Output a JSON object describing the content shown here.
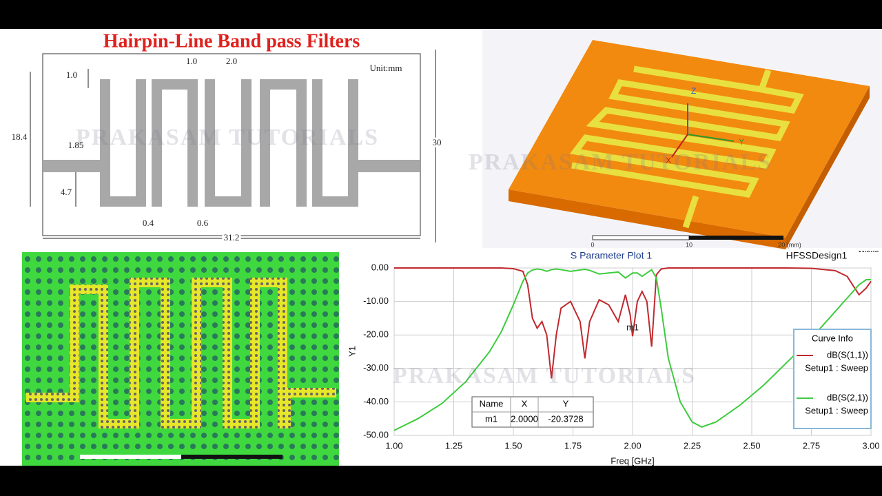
{
  "title": "Hairpin-Line Band pass Filters",
  "watermark": "PRAKASAM TUTORIALS",
  "drawing": {
    "unit": "Unit:mm",
    "dims": {
      "gap_top": "1.0",
      "width_top": "1.0",
      "spacing_top": "2.0",
      "height": "18.4",
      "feed_width": "1.85",
      "feed_offset": "4.7",
      "gap_bottom": "0.4",
      "gap_bottom2": "0.6",
      "length": "31.2",
      "board_height": "30"
    }
  },
  "model_3d": {
    "axes": [
      "Z",
      "Y",
      "X"
    ],
    "scale": [
      "0",
      "10",
      "20 (mm)"
    ],
    "vendor": "ANSYS"
  },
  "chart_data": {
    "type": "line",
    "title": "S Parameter Plot 1",
    "design": "HFSSDesign1",
    "x_label": "Freq [GHz]",
    "y_label": "Y1",
    "xlim": [
      1.0,
      3.0
    ],
    "ylim": [
      -50,
      0
    ],
    "xticks": [
      {
        "value": 1.0,
        "label": "1.00"
      },
      {
        "value": 1.25,
        "label": "1.25"
      },
      {
        "value": 1.5,
        "label": "1.50"
      },
      {
        "value": 1.75,
        "label": "1.75"
      },
      {
        "value": 2.0,
        "label": "2.00"
      },
      {
        "value": 2.25,
        "label": "2.25"
      },
      {
        "value": 2.5,
        "label": "2.50"
      },
      {
        "value": 2.75,
        "label": "2.75"
      },
      {
        "value": 3.0,
        "label": "3.00"
      }
    ],
    "yticks": [
      {
        "value": 0,
        "label": "0.00"
      },
      {
        "value": -10,
        "label": "-10.00"
      },
      {
        "value": -20,
        "label": "-20.00"
      },
      {
        "value": -30,
        "label": "-30.00"
      },
      {
        "value": -40,
        "label": "-40.00"
      },
      {
        "value": -50,
        "label": "-50.00"
      }
    ],
    "grid": true,
    "legend_title": "Curve Info",
    "legend": "right",
    "x": [
      1.0,
      1.1,
      1.2,
      1.3,
      1.4,
      1.45,
      1.5,
      1.54,
      1.56,
      1.58,
      1.6,
      1.62,
      1.64,
      1.66,
      1.68,
      1.7,
      1.74,
      1.78,
      1.8,
      1.82,
      1.86,
      1.9,
      1.94,
      1.97,
      1.99,
      2.0,
      2.02,
      2.04,
      2.06,
      2.08,
      2.1,
      2.12,
      2.15,
      2.2,
      2.25,
      2.29,
      2.35,
      2.45,
      2.55,
      2.65,
      2.75,
      2.85,
      2.9,
      2.95,
      2.98,
      3.0
    ],
    "series": [
      {
        "name": "dB(S(1,1))",
        "setup": "Setup1 : Sweep",
        "color": "#c0282d",
        "values": [
          0,
          0,
          0,
          0,
          0,
          0,
          -0.2,
          -1,
          -5,
          -15,
          -18,
          -16,
          -20,
          -33,
          -20,
          -12,
          -10,
          -16,
          -27,
          -16,
          -9.5,
          -11,
          -16,
          -8,
          -14,
          -20.4,
          -10,
          -7,
          -10,
          -23.5,
          -2,
          -0.3,
          0,
          0,
          0,
          0,
          0,
          0,
          0,
          0,
          -0.1,
          -0.8,
          -2.5,
          -8,
          -6,
          -4
        ]
      },
      {
        "name": "dB(S(2,1))",
        "setup": "Setup1 : Sweep",
        "color": "#3ccc3c",
        "values": [
          -48.5,
          -45,
          -40.5,
          -34,
          -25,
          -19,
          -11,
          -4,
          -1.5,
          -0.6,
          -0.3,
          -0.5,
          -1,
          -0.5,
          -0.3,
          -0.5,
          -1,
          -0.6,
          -0.4,
          -0.7,
          -1.8,
          -1.5,
          -1.2,
          -3,
          -2,
          -1.5,
          -1.5,
          -2.5,
          -1.5,
          -0.5,
          -3,
          -12,
          -27,
          -40,
          -46,
          -47.5,
          -46,
          -41,
          -35,
          -28,
          -21,
          -13,
          -9,
          -5,
          -3.5,
          -3.5
        ]
      }
    ],
    "marker": {
      "columns": [
        "Name",
        "X",
        "Y"
      ],
      "row": [
        "m1",
        "2.0000",
        "-20.3728"
      ]
    }
  }
}
